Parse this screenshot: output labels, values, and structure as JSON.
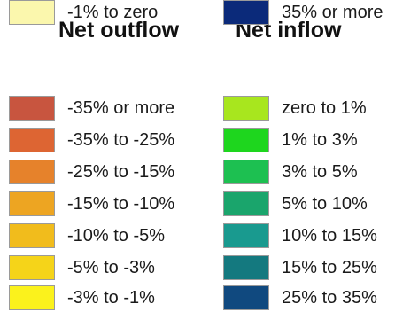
{
  "legend": {
    "outflow": {
      "heading": "Net outflow",
      "items": [
        {
          "label": "-35% or more",
          "color": "#c8553f"
        },
        {
          "label": "-35% to -25%",
          "color": "#dd6533"
        },
        {
          "label": "-25% to -15%",
          "color": "#e6822b"
        },
        {
          "label": "-15% to -10%",
          "color": "#eda522"
        },
        {
          "label": "-10% to -5%",
          "color": "#f1bc1c"
        },
        {
          "label": "-5% to -3%",
          "color": "#f5d419"
        },
        {
          "label": "-3% to -1%",
          "color": "#fbf21c"
        },
        {
          "label": "-1% to zero",
          "color": "#fbf7ad"
        }
      ]
    },
    "inflow": {
      "heading": "Net inflow",
      "items": [
        {
          "label": "zero to 1%",
          "color": "#a8e61e"
        },
        {
          "label": "1% to 3%",
          "color": "#1ed61e"
        },
        {
          "label": "3% to 5%",
          "color": "#1dc051"
        },
        {
          "label": "5% to 10%",
          "color": "#1aa56c"
        },
        {
          "label": "10% to 15%",
          "color": "#199a8f"
        },
        {
          "label": "15% to 25%",
          "color": "#14797f"
        },
        {
          "label": "25% to 35%",
          "color": "#10497f"
        },
        {
          "label": "35% or more",
          "color": "#0b2a7a"
        }
      ]
    }
  }
}
